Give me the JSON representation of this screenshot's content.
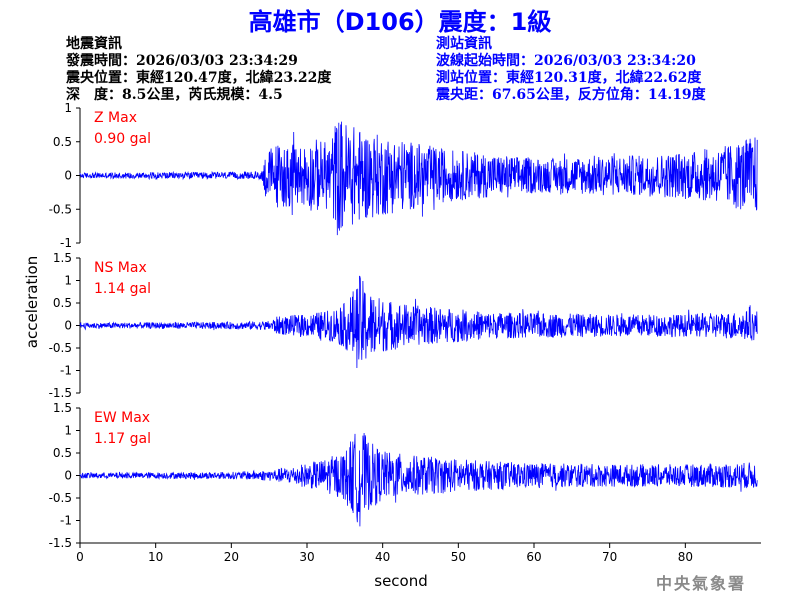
{
  "title": "高雄市（D106）震度：1級",
  "quake_info": {
    "heading": "地震資訊",
    "time": "發震時間：2026/03/03 23:34:29",
    "epicenter": "震央位置：東經120.47度，北緯23.22度",
    "depth_mag": "深　度：8.5公里，芮氏規模：4.5"
  },
  "station_info": {
    "heading": "測站資訊",
    "wave_start": "波線起始時間：2026/03/03 23:34:20",
    "station_pos": "測站位置：東經120.31度，北緯22.62度",
    "distance": "震央距：67.65公里，反方位角：14.19度"
  },
  "footer": "中央氣象署",
  "colors": {
    "title": "#0000ff",
    "trace": "#0000ff",
    "max_label": "#ff0000",
    "axis": "#000000"
  },
  "chart_data": {
    "type": "line",
    "xlabel": "second",
    "ylabel": "acceleration",
    "xlim": [
      0,
      90
    ],
    "x_ticks": [
      0,
      10,
      20,
      30,
      40,
      50,
      60,
      70,
      80
    ],
    "grid": false,
    "panels": [
      {
        "name": "Z",
        "max_label": "Z Max",
        "max_value": "0.90 gal",
        "ylim": [
          -1,
          1
        ],
        "y_ticks": [
          -1,
          -0.5,
          0,
          0.5,
          1
        ],
        "envelope": [
          [
            0,
            0.04
          ],
          [
            10,
            0.05
          ],
          [
            20,
            0.05
          ],
          [
            24,
            0.06
          ],
          [
            24.5,
            0.35
          ],
          [
            26,
            0.5
          ],
          [
            29,
            0.45
          ],
          [
            31,
            0.55
          ],
          [
            33,
            0.5
          ],
          [
            34,
            0.9
          ],
          [
            36,
            0.75
          ],
          [
            38,
            0.65
          ],
          [
            40,
            0.6
          ],
          [
            44,
            0.5
          ],
          [
            48,
            0.4
          ],
          [
            52,
            0.35
          ],
          [
            56,
            0.3
          ],
          [
            62,
            0.25
          ],
          [
            68,
            0.3
          ],
          [
            74,
            0.3
          ],
          [
            80,
            0.35
          ],
          [
            84,
            0.4
          ],
          [
            88,
            0.55
          ],
          [
            89.5,
            0.6
          ]
        ]
      },
      {
        "name": "NS",
        "max_label": "NS Max",
        "max_value": "1.14 gal",
        "ylim": [
          -1.5,
          1.5
        ],
        "y_ticks": [
          -1.5,
          -1,
          -0.5,
          0,
          0.5,
          1,
          1.5
        ],
        "envelope": [
          [
            0,
            0.06
          ],
          [
            10,
            0.07
          ],
          [
            20,
            0.08
          ],
          [
            25,
            0.1
          ],
          [
            26,
            0.2
          ],
          [
            30,
            0.25
          ],
          [
            33,
            0.35
          ],
          [
            35,
            0.5
          ],
          [
            36.5,
            0.9
          ],
          [
            37,
            1.14
          ],
          [
            38,
            0.8
          ],
          [
            40,
            0.6
          ],
          [
            44,
            0.45
          ],
          [
            48,
            0.4
          ],
          [
            54,
            0.3
          ],
          [
            60,
            0.28
          ],
          [
            70,
            0.25
          ],
          [
            80,
            0.25
          ],
          [
            86,
            0.3
          ],
          [
            89.5,
            0.35
          ]
        ]
      },
      {
        "name": "EW",
        "max_label": "EW Max",
        "max_value": "1.17 gal",
        "ylim": [
          -1.5,
          1.5
        ],
        "y_ticks": [
          -1.5,
          -1,
          -0.5,
          0,
          0.5,
          1,
          1.5
        ],
        "envelope": [
          [
            0,
            0.06
          ],
          [
            10,
            0.07
          ],
          [
            20,
            0.08
          ],
          [
            25,
            0.12
          ],
          [
            28,
            0.2
          ],
          [
            32,
            0.35
          ],
          [
            35,
            0.55
          ],
          [
            36.5,
            1.0
          ],
          [
            37,
            1.17
          ],
          [
            38,
            0.8
          ],
          [
            40,
            0.55
          ],
          [
            44,
            0.45
          ],
          [
            48,
            0.4
          ],
          [
            54,
            0.32
          ],
          [
            60,
            0.28
          ],
          [
            70,
            0.25
          ],
          [
            80,
            0.25
          ],
          [
            86,
            0.28
          ],
          [
            89.5,
            0.3
          ]
        ]
      }
    ]
  }
}
